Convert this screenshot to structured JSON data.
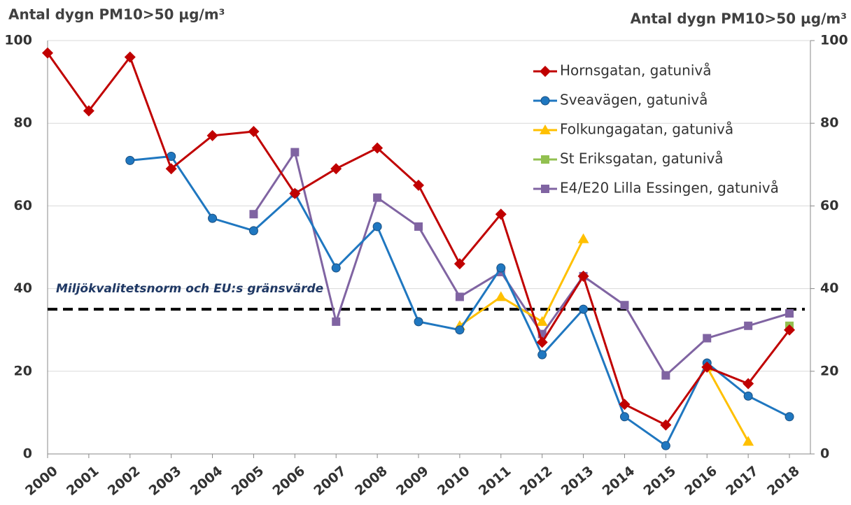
{
  "chart_data": {
    "type": "line",
    "y_label": "Antal dygn PM10>50 µg/m³",
    "y2_label": "Antal dygn PM10>50 µg/m³",
    "categories": [
      "2000",
      "2001",
      "2002",
      "2003",
      "2004",
      "2005",
      "2006",
      "2007",
      "2008",
      "2009",
      "2010",
      "2011",
      "2012",
      "2013",
      "2014",
      "2015",
      "2016",
      "2017",
      "2018"
    ],
    "series": [
      {
        "name": "Hornsgatan, gatunivå",
        "color": "#c00000",
        "marker": "diamond",
        "values": [
          97,
          83,
          96,
          69,
          77,
          78,
          63,
          69,
          74,
          65,
          46,
          58,
          27,
          43,
          12,
          7,
          21,
          17,
          30
        ]
      },
      {
        "name": "Sveavägen, gatunivå",
        "color": "#1f77c0",
        "marker": "circle",
        "values": [
          null,
          null,
          71,
          72,
          57,
          54,
          63,
          45,
          55,
          32,
          30,
          45,
          24,
          35,
          9,
          2,
          22,
          14,
          9
        ]
      },
      {
        "name": "Folkungagatan, gatunivå",
        "color": "#ffc000",
        "marker": "triangle",
        "values": [
          null,
          null,
          null,
          null,
          null,
          null,
          null,
          null,
          null,
          null,
          31,
          38,
          32,
          52,
          null,
          null,
          21,
          3,
          null
        ]
      },
      {
        "name": "St Eriksgatan, gatunivå",
        "color": "#92c050",
        "marker": "square",
        "values": [
          null,
          null,
          null,
          null,
          null,
          null,
          null,
          null,
          null,
          null,
          null,
          null,
          null,
          null,
          null,
          null,
          null,
          null,
          31
        ]
      },
      {
        "name": "E4/E20 Lilla Essingen, gatunivå",
        "color": "#8064a2",
        "marker": "square",
        "values": [
          null,
          null,
          null,
          null,
          null,
          58,
          73,
          32,
          62,
          55,
          38,
          44,
          29,
          43,
          36,
          19,
          28,
          31,
          34
        ]
      }
    ],
    "threshold": {
      "label": "Miljökvalitetsnorm och EU:s gränsvärde",
      "value": 35
    },
    "ylim": [
      0,
      100
    ],
    "yticks": [
      0,
      20,
      40,
      60,
      80,
      100
    ],
    "y2lim": [
      0,
      100
    ],
    "y2ticks": [
      0,
      20,
      40,
      60,
      80,
      100
    ],
    "grid": true,
    "legend": "top-right"
  }
}
